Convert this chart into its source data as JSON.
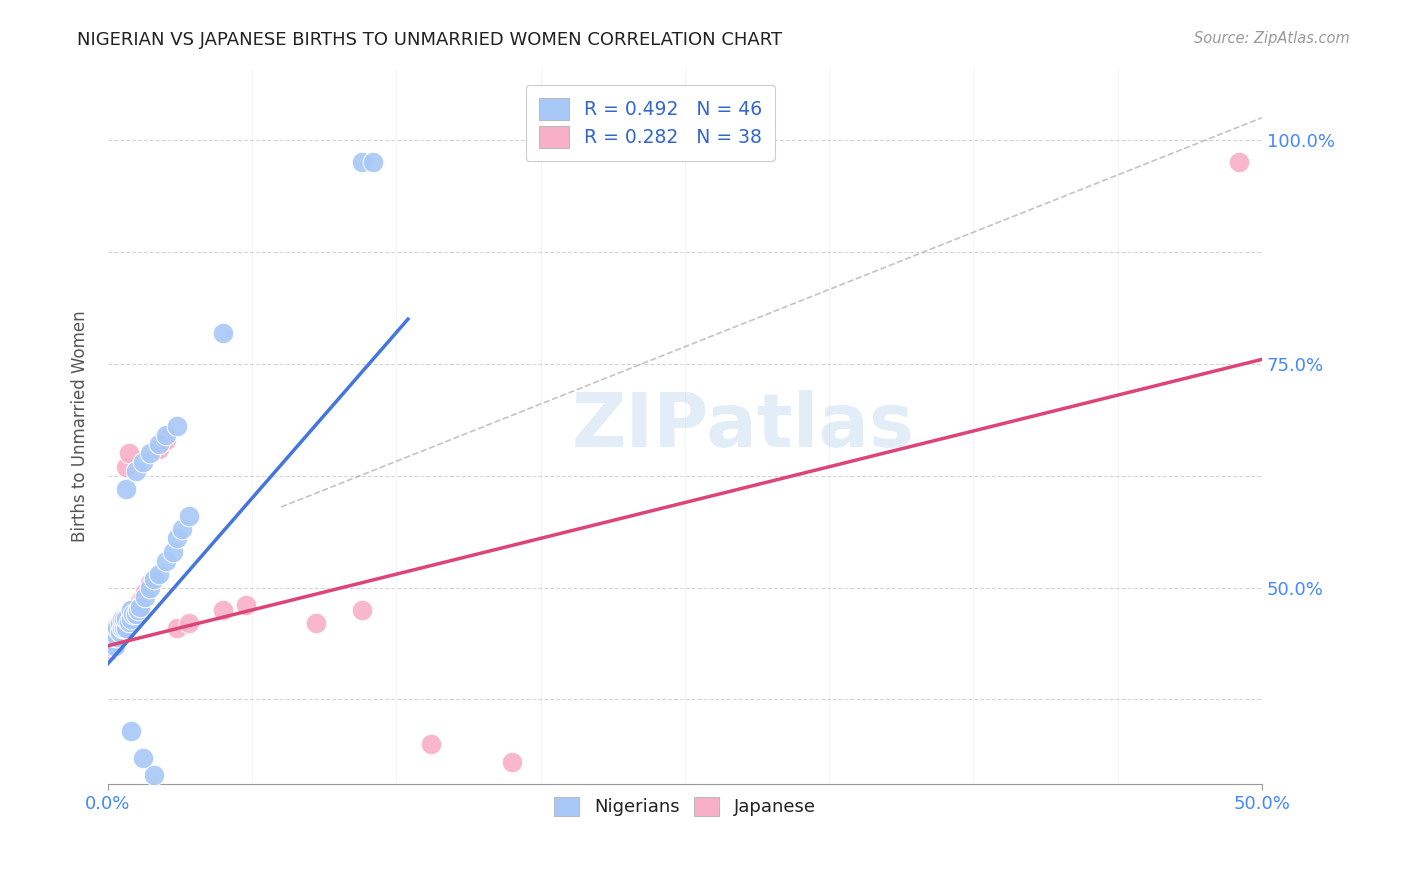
{
  "title": "NIGERIAN VS JAPANESE BIRTHS TO UNMARRIED WOMEN CORRELATION CHART",
  "source": "Source: ZipAtlas.com",
  "ylabel": "Births to Unmarried Women",
  "legend_blue_label": "R = 0.492   N = 46",
  "legend_pink_label": "R = 0.282   N = 38",
  "watermark": "ZIPatlas",
  "blue_color": "#a8c8f8",
  "pink_color": "#f8b0c8",
  "blue_line_color": "#4477dd",
  "pink_line_color": "#dd4477",
  "right_axis_color": "#4488ff",
  "xlim": [
    0.0,
    0.5
  ],
  "ylim": [
    0.28,
    1.08
  ],
  "yticks": [
    0.375,
    0.5,
    0.625,
    0.75,
    0.875,
    1.0
  ],
  "xticks": [
    0.0,
    0.5
  ],
  "xtick_labels": [
    "0.0%",
    "50.0%"
  ],
  "ytick_labels_right": [
    "",
    "50.0%",
    "",
    "75.0%",
    "",
    "100.0%"
  ],
  "blue_scatter_x": [
    0.001,
    0.001,
    0.002,
    0.002,
    0.003,
    0.003,
    0.003,
    0.004,
    0.004,
    0.005,
    0.005,
    0.006,
    0.006,
    0.007,
    0.007,
    0.008,
    0.008,
    0.009,
    0.01,
    0.01,
    0.011,
    0.012,
    0.013,
    0.014,
    0.016,
    0.018,
    0.02,
    0.022,
    0.025,
    0.028,
    0.03,
    0.032,
    0.035,
    0.008,
    0.012,
    0.015,
    0.018,
    0.022,
    0.025,
    0.03,
    0.01,
    0.015,
    0.02,
    0.11,
    0.115,
    0.05
  ],
  "blue_scatter_y": [
    0.435,
    0.445,
    0.44,
    0.45,
    0.435,
    0.445,
    0.455,
    0.445,
    0.455,
    0.45,
    0.46,
    0.455,
    0.465,
    0.455,
    0.465,
    0.455,
    0.465,
    0.462,
    0.465,
    0.475,
    0.47,
    0.47,
    0.475,
    0.478,
    0.49,
    0.5,
    0.51,
    0.515,
    0.53,
    0.54,
    0.555,
    0.565,
    0.58,
    0.61,
    0.63,
    0.64,
    0.65,
    0.66,
    0.67,
    0.68,
    0.34,
    0.31,
    0.29,
    0.975,
    0.975,
    0.785
  ],
  "pink_scatter_x": [
    0.001,
    0.001,
    0.002,
    0.002,
    0.003,
    0.003,
    0.004,
    0.004,
    0.005,
    0.005,
    0.006,
    0.006,
    0.007,
    0.008,
    0.009,
    0.01,
    0.01,
    0.011,
    0.012,
    0.013,
    0.014,
    0.015,
    0.016,
    0.018,
    0.02,
    0.008,
    0.009,
    0.022,
    0.025,
    0.03,
    0.035,
    0.05,
    0.06,
    0.09,
    0.11,
    0.14,
    0.175,
    0.49
  ],
  "pink_scatter_y": [
    0.43,
    0.44,
    0.435,
    0.445,
    0.44,
    0.45,
    0.445,
    0.455,
    0.45,
    0.46,
    0.455,
    0.465,
    0.46,
    0.465,
    0.462,
    0.465,
    0.475,
    0.47,
    0.475,
    0.475,
    0.485,
    0.49,
    0.495,
    0.505,
    0.51,
    0.635,
    0.65,
    0.655,
    0.665,
    0.455,
    0.46,
    0.475,
    0.48,
    0.46,
    0.475,
    0.325,
    0.305,
    0.975
  ],
  "blue_line_x": [
    0.0,
    0.13
  ],
  "blue_line_y": [
    0.415,
    0.8
  ],
  "pink_line_x": [
    0.0,
    0.5
  ],
  "pink_line_y": [
    0.435,
    0.755
  ],
  "dashed_line_x": [
    0.075,
    0.5
  ],
  "dashed_line_y": [
    0.59,
    1.025
  ]
}
